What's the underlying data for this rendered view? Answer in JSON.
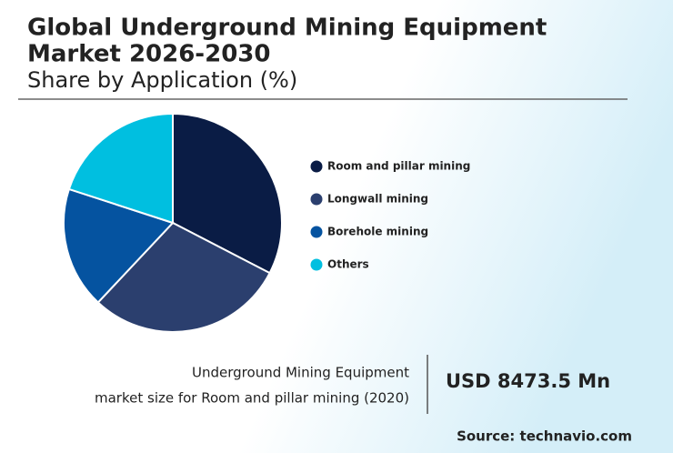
{
  "chart_data": {
    "type": "pie",
    "title": [
      "Global Underground Mining Equipment",
      "Market 2026-2030"
    ],
    "subtitle": "Share by Application (%)",
    "categories": [
      "Room and pillar mining",
      "Longwall mining",
      "Borehole mining",
      "Others"
    ],
    "values": [
      32.6,
      29.4,
      18,
      20
    ],
    "colors": [
      "#0a1c45",
      "#2b3f6e",
      "#0553a0",
      "#00bfe0"
    ],
    "highlight": {
      "text": [
        "Underground Mining Equipment",
        "market size for Room and pillar mining (2020)"
      ],
      "value": "USD 8473.5 Mn"
    },
    "source": "Source: technavio.com"
  }
}
